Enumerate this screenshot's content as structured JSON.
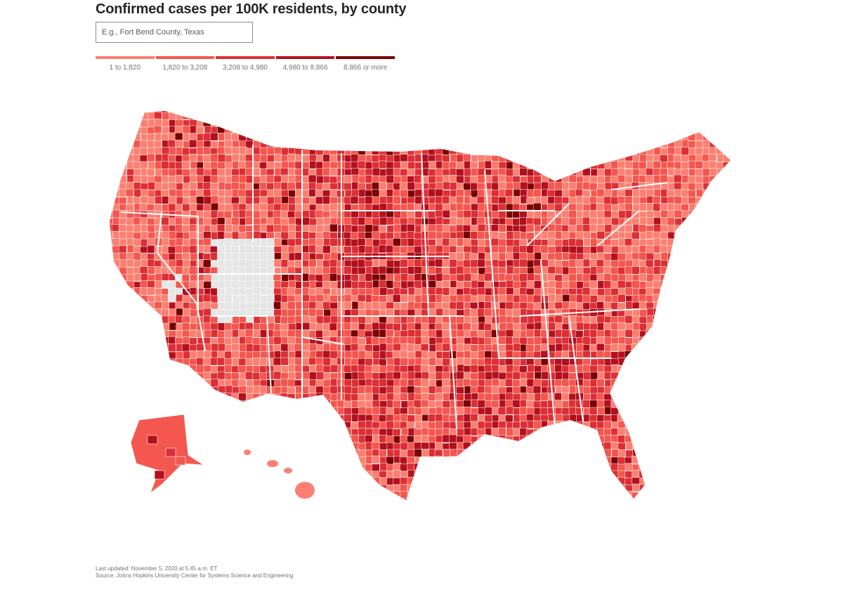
{
  "header": {
    "title": "Confirmed cases per 100K residents, by county"
  },
  "search": {
    "placeholder": "E.g., Fort Bend County, Texas"
  },
  "legend": {
    "items": [
      {
        "label": "1 to 1,820",
        "color": "#fb8072"
      },
      {
        "label": "1,820 to 3,208",
        "color": "#f4574f"
      },
      {
        "label": "3,208 to 4,980",
        "color": "#dc2f35"
      },
      {
        "label": "4,980 to 8,866",
        "color": "#b3101e"
      },
      {
        "label": "8,866 or more",
        "color": "#7a0000"
      }
    ],
    "no_data_color": "#e6e6e6"
  },
  "footer": {
    "updated": "Last updated: November 5, 2020 at 5:45 a.m. ET",
    "source": "Source: Johns Hopkins University Center for Systems Science and Engineering"
  }
}
